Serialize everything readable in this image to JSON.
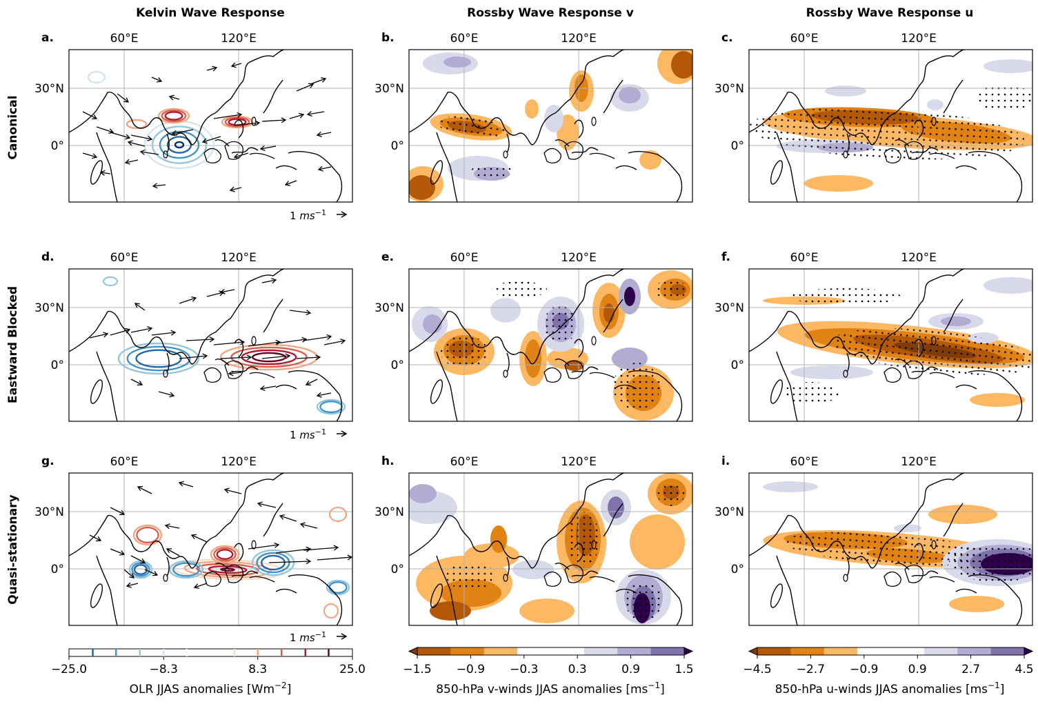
{
  "column_titles": [
    "Kelvin Wave Response",
    "Rossby Wave Response v",
    "Rossby Wave Response u"
  ],
  "row_titles": [
    "Canonical",
    "Eastward Blocked",
    "Quasi-stationary"
  ],
  "panel_labels": [
    "a.",
    "b.",
    "c.",
    "d.",
    "e.",
    "f.",
    "g.",
    "h.",
    "i."
  ],
  "map_ticks": {
    "lon": [
      "60°E",
      "120°E"
    ],
    "lat": [
      "30°N",
      "0°"
    ]
  },
  "vector_key": {
    "prefix": "1 ",
    "unit": "ms",
    "exp": "−1"
  },
  "chart_data": [
    {
      "type": "heatmap",
      "panel": "OLR colorbar",
      "xlabel": "OLR JJAS anomalies [Wm",
      "xlabel_exp": "−2",
      "xlabel_suffix": "]",
      "ticks": [
        "−25.0",
        "−8.3",
        "8.3",
        "25.0"
      ],
      "range": [
        -25.0,
        25.0
      ],
      "levels": [
        -25.0,
        -20.8,
        -16.7,
        -12.5,
        -8.3,
        -4.2,
        0,
        4.2,
        8.3,
        12.5,
        16.7,
        20.8,
        25.0
      ],
      "colors": [
        "#2166ac",
        "#4393c3",
        "#92c5de",
        "#d1e5f0",
        "#fddbc7",
        "#f4a582",
        "#d6604d",
        "#b2182b"
      ]
    },
    {
      "type": "heatmap",
      "panel": "v colorbar",
      "xlabel": "850-hPa v-winds JJAS anomalies [ms",
      "xlabel_exp": "−1",
      "xlabel_suffix": "]",
      "ticks": [
        "−1.5",
        "−0.9",
        "−0.3",
        "0.3",
        "0.9",
        "1.5"
      ],
      "range": [
        -1.5,
        1.5
      ],
      "colors": [
        "#7f3b08",
        "#b35806",
        "#e08214",
        "#fdb863",
        "#ffffff",
        "#ffffff",
        "#d8daeb",
        "#b2abd2",
        "#8073ac",
        "#2d004b"
      ]
    },
    {
      "type": "heatmap",
      "panel": "u colorbar",
      "xlabel": "850-hPa u-winds JJAS anomalies [ms",
      "xlabel_exp": "−1",
      "xlabel_suffix": "]",
      "ticks": [
        "−4.5",
        "−2.7",
        "−0.9",
        "0.9",
        "2.7",
        "4.5"
      ],
      "range": [
        -4.5,
        4.5
      ],
      "colors": [
        "#7f3b08",
        "#b35806",
        "#e08214",
        "#fdb863",
        "#ffffff",
        "#ffffff",
        "#d8daeb",
        "#b2abd2",
        "#8073ac",
        "#2d004b"
      ]
    }
  ]
}
